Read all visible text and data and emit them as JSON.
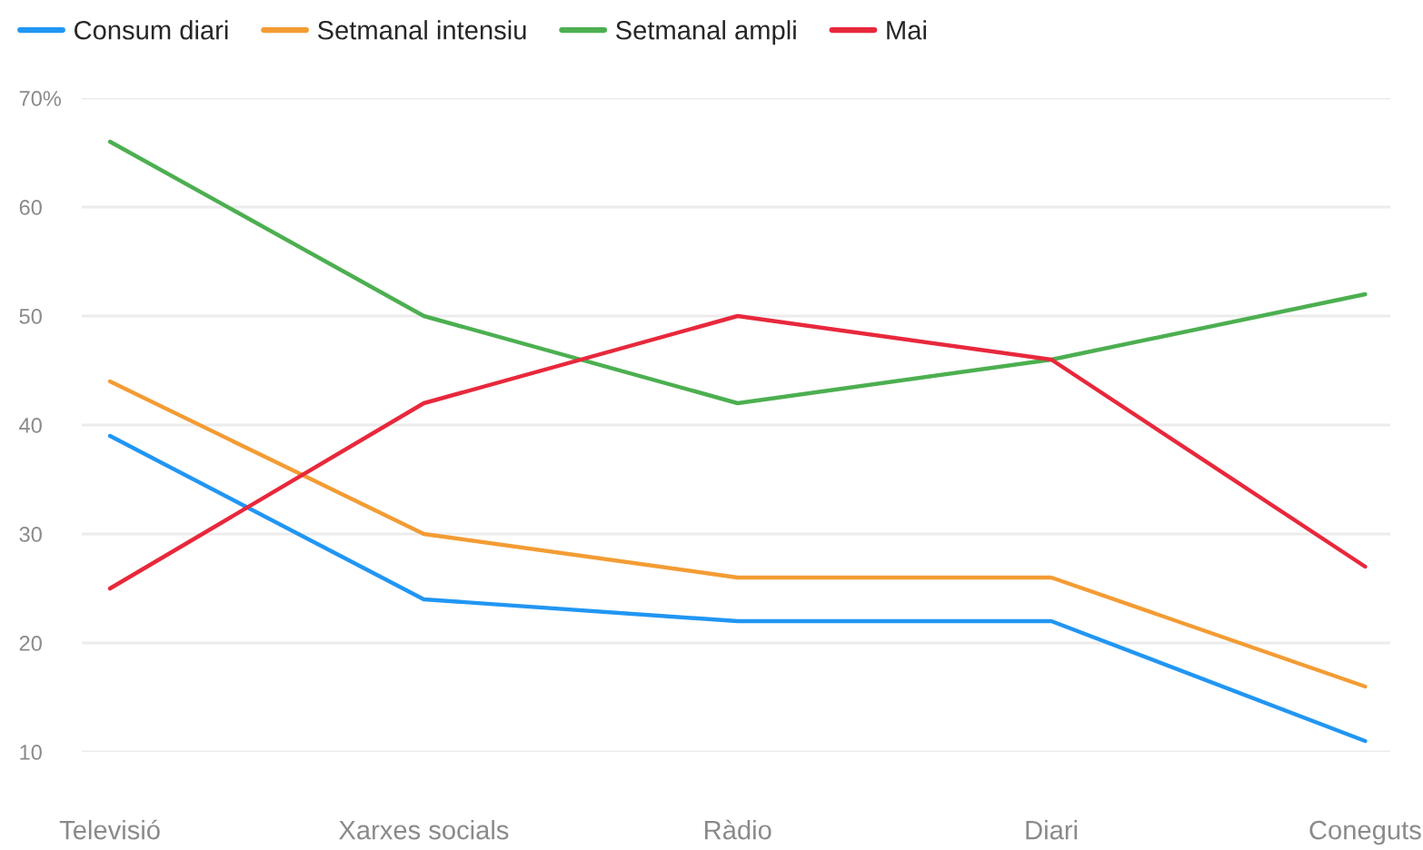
{
  "chart_data": {
    "type": "line",
    "categories": [
      "Televisió",
      "Xarxes socials",
      "Ràdio",
      "Diari",
      "Coneguts"
    ],
    "series": [
      {
        "name": "Consum diari",
        "color": "#2196f3",
        "values": [
          39,
          24,
          22,
          22,
          11
        ]
      },
      {
        "name": "Setmanal intensiu",
        "color": "#f39c34",
        "values": [
          44,
          30,
          26,
          26,
          16
        ]
      },
      {
        "name": "Setmanal ampli",
        "color": "#4caf50",
        "values": [
          66,
          50,
          42,
          46,
          52
        ]
      },
      {
        "name": "Mai",
        "color": "#e8283c",
        "values": [
          25,
          42,
          50,
          46,
          27
        ]
      }
    ],
    "ylim": [
      10,
      70
    ],
    "yticks": [
      {
        "value": 70,
        "label": "70%"
      },
      60,
      50,
      40,
      30,
      20,
      10
    ],
    "grid": "y",
    "legend": "top"
  }
}
